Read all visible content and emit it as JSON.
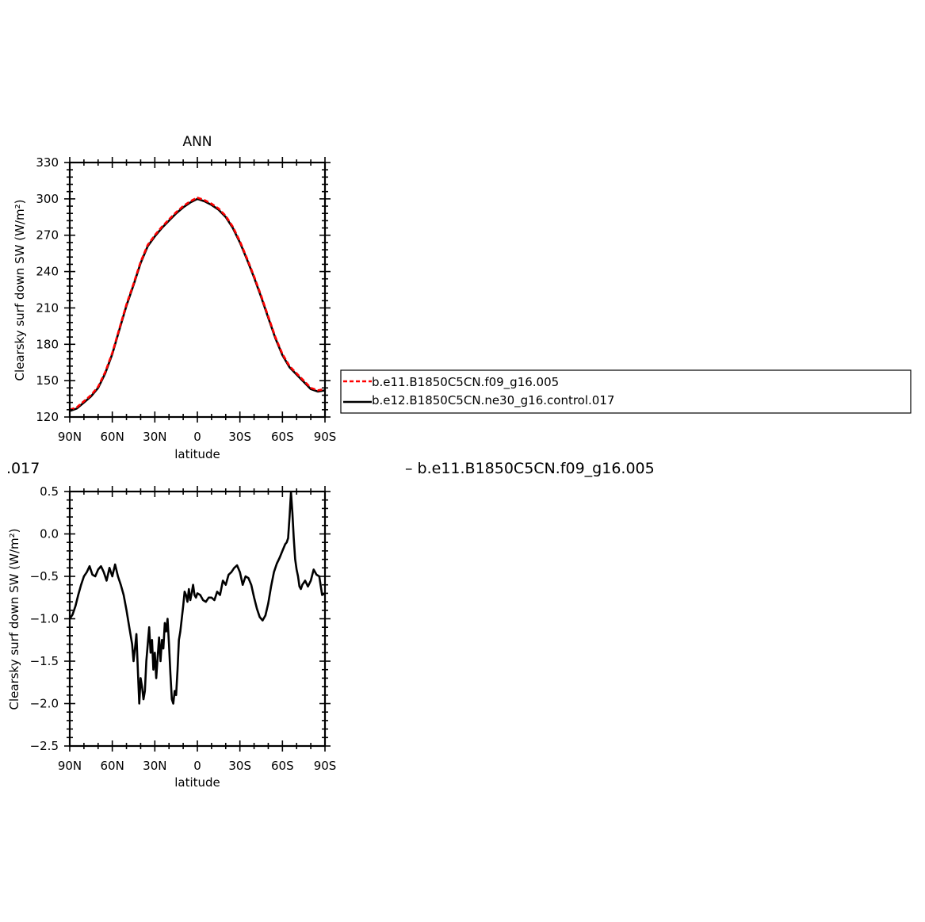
{
  "fragments": {
    "left": ".017",
    "right": "– b.e11.B1850C5CN.f09_g16.005"
  },
  "legend": [
    {
      "label": "b.e11.B1850C5CN.f09_g16.005",
      "color": "#ff0000",
      "dash": true
    },
    {
      "label": "b.e12.B1850C5CN.ne30_g16.control.017",
      "color": "#000000",
      "dash": false
    }
  ],
  "chart_data": [
    {
      "type": "line",
      "title": "ANN",
      "xlabel": "latitude",
      "ylabel": "Clearsky surf down SW (W/m²)",
      "xlim": [
        90,
        -90
      ],
      "ylim": [
        120,
        330
      ],
      "xticks": [
        90,
        60,
        30,
        0,
        -30,
        -60,
        -90
      ],
      "xtick_labels": [
        "90N",
        "60N",
        "30N",
        "0",
        "30S",
        "60S",
        "90S"
      ],
      "yticks": [
        120,
        150,
        180,
        210,
        240,
        270,
        300,
        330
      ],
      "ytick_labels": [
        "120",
        "150",
        "180",
        "210",
        "240",
        "270",
        "300",
        "330"
      ],
      "grid": false,
      "series": [
        {
          "name": "b.e11.B1850C5CN.f09_g16.005",
          "color": "#ff0000",
          "dash": true,
          "x": [
            90,
            85,
            80,
            75,
            70,
            65,
            60,
            55,
            50,
            45,
            40,
            35,
            30,
            25,
            20,
            15,
            10,
            5,
            0,
            -5,
            -10,
            -15,
            -20,
            -25,
            -30,
            -35,
            -40,
            -45,
            -50,
            -55,
            -60,
            -65,
            -70,
            -75,
            -80,
            -85,
            -90
          ],
          "y": [
            126,
            128,
            133,
            138,
            145,
            157,
            173,
            193,
            213,
            230,
            248,
            262,
            270,
            277,
            283,
            289,
            294,
            298,
            301,
            299,
            296,
            292,
            286,
            277,
            265,
            251,
            236,
            220,
            203,
            186,
            172,
            162,
            156,
            150,
            144,
            142,
            143
          ]
        },
        {
          "name": "b.e12.B1850C5CN.ne30_g16.control.017",
          "color": "#000000",
          "dash": false,
          "x": [
            90,
            85,
            80,
            75,
            70,
            65,
            60,
            55,
            50,
            45,
            40,
            35,
            30,
            25,
            20,
            15,
            10,
            5,
            0,
            -5,
            -10,
            -15,
            -20,
            -25,
            -30,
            -35,
            -40,
            -45,
            -50,
            -55,
            -60,
            -65,
            -70,
            -75,
            -80,
            -85,
            -90
          ],
          "y": [
            125,
            127,
            132,
            137,
            144,
            156,
            172,
            192,
            212,
            229,
            247,
            261,
            269,
            276,
            282,
            288,
            293,
            297,
            300,
            298,
            295,
            291,
            285,
            276,
            264,
            250,
            235,
            219,
            202,
            185,
            171,
            161,
            155,
            149,
            143,
            141,
            142
          ]
        }
      ]
    },
    {
      "type": "line",
      "title": "",
      "xlabel": "latitude",
      "ylabel": "Clearsky surf down SW (W/m²)",
      "xlim": [
        90,
        -90
      ],
      "ylim": [
        -2.5,
        0.5
      ],
      "xticks": [
        90,
        60,
        30,
        0,
        -30,
        -60,
        -90
      ],
      "xtick_labels": [
        "90N",
        "60N",
        "30N",
        "0",
        "30S",
        "60S",
        "90S"
      ],
      "yticks": [
        -2.5,
        -2.0,
        -1.5,
        -1.0,
        -0.5,
        0.0,
        0.5
      ],
      "ytick_labels": [
        "−2.5",
        "−2.0",
        "−1.5",
        "−1.0",
        "−0.5",
        "0.0",
        "0.5"
      ],
      "grid": false,
      "series": [
        {
          "color": "#000000",
          "dash": false,
          "x": [
            90,
            88,
            86,
            84,
            82,
            80,
            78,
            76,
            74,
            72,
            70,
            68,
            66,
            64,
            62,
            60,
            58,
            56,
            54,
            52,
            50,
            48,
            46,
            45,
            44,
            43,
            42,
            41,
            40,
            39,
            38,
            37,
            36,
            35,
            34,
            33,
            32,
            31,
            30,
            29,
            28,
            27,
            26,
            25,
            24,
            23,
            22,
            21,
            20,
            19,
            18,
            17,
            16,
            15,
            14,
            13,
            12,
            11,
            10,
            9,
            8,
            7,
            6,
            5,
            4,
            3,
            2,
            1,
            0,
            -2,
            -4,
            -6,
            -8,
            -10,
            -12,
            -14,
            -16,
            -18,
            -20,
            -22,
            -24,
            -26,
            -28,
            -30,
            -32,
            -34,
            -36,
            -38,
            -40,
            -42,
            -44,
            -46,
            -48,
            -50,
            -52,
            -54,
            -56,
            -58,
            -60,
            -62,
            -63,
            -64,
            -65,
            -66,
            -67,
            -68,
            -69,
            -70,
            -71,
            -72,
            -73,
            -74,
            -76,
            -78,
            -80,
            -82,
            -84,
            -86,
            -88,
            -90
          ],
          "y": [
            -1.0,
            -0.95,
            -0.85,
            -0.72,
            -0.6,
            -0.5,
            -0.45,
            -0.38,
            -0.48,
            -0.5,
            -0.42,
            -0.38,
            -0.45,
            -0.55,
            -0.4,
            -0.5,
            -0.36,
            -0.5,
            -0.6,
            -0.72,
            -0.9,
            -1.1,
            -1.3,
            -1.5,
            -1.35,
            -1.18,
            -1.6,
            -2.0,
            -1.7,
            -1.8,
            -1.95,
            -1.85,
            -1.5,
            -1.3,
            -1.1,
            -1.4,
            -1.25,
            -1.6,
            -1.4,
            -1.7,
            -1.45,
            -1.22,
            -1.5,
            -1.25,
            -1.35,
            -1.05,
            -1.15,
            -1.0,
            -1.3,
            -1.65,
            -1.95,
            -2.0,
            -1.85,
            -1.9,
            -1.6,
            -1.25,
            -1.15,
            -1.0,
            -0.85,
            -0.68,
            -0.72,
            -0.8,
            -0.65,
            -0.78,
            -0.7,
            -0.6,
            -0.72,
            -0.75,
            -0.7,
            -0.72,
            -0.78,
            -0.8,
            -0.75,
            -0.75,
            -0.78,
            -0.68,
            -0.72,
            -0.55,
            -0.6,
            -0.48,
            -0.45,
            -0.4,
            -0.37,
            -0.45,
            -0.6,
            -0.5,
            -0.52,
            -0.6,
            -0.75,
            -0.88,
            -0.98,
            -1.02,
            -0.96,
            -0.82,
            -0.62,
            -0.45,
            -0.35,
            -0.28,
            -0.2,
            -0.12,
            -0.1,
            -0.05,
            0.2,
            0.49,
            0.25,
            -0.05,
            -0.3,
            -0.42,
            -0.5,
            -0.62,
            -0.65,
            -0.6,
            -0.55,
            -0.62,
            -0.55,
            -0.42,
            -0.48,
            -0.5,
            -0.72,
            -0.7
          ]
        }
      ]
    }
  ]
}
